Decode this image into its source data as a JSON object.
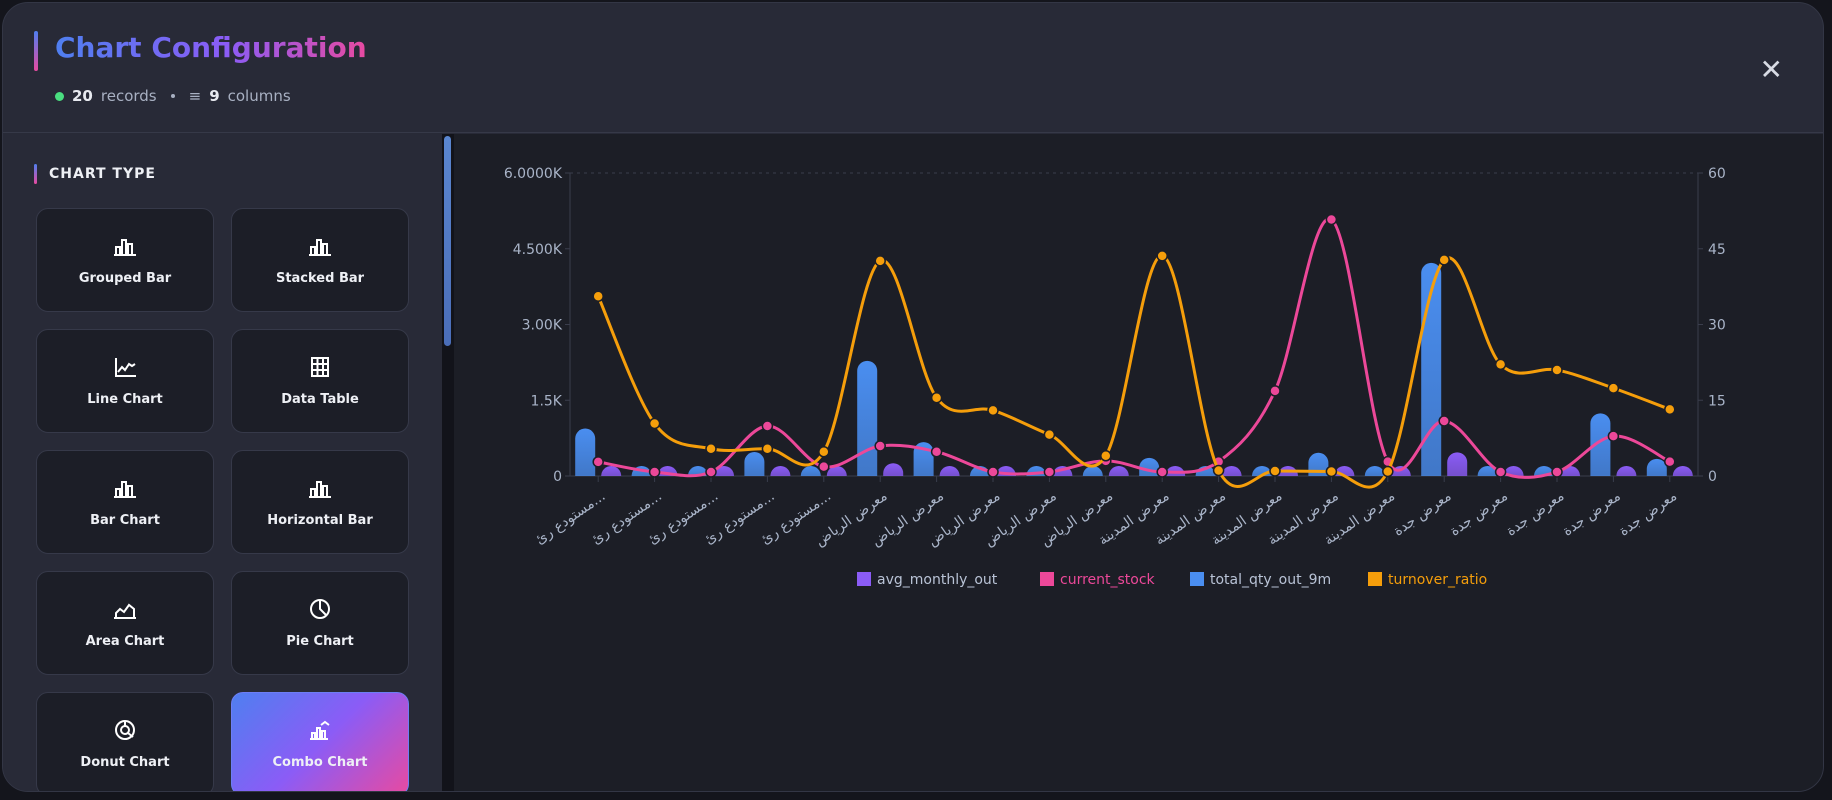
{
  "header": {
    "title": "Chart Configuration",
    "records_count": "20",
    "records_label": "records",
    "columns_count": "9",
    "columns_label": "columns",
    "close_icon": "close-icon"
  },
  "sidebar": {
    "section_title": "CHART TYPE",
    "items": [
      {
        "label": "Grouped Bar",
        "icon": "bar-chart-icon"
      },
      {
        "label": "Stacked Bar",
        "icon": "bar-chart-icon"
      },
      {
        "label": "Line Chart",
        "icon": "line-chart-icon"
      },
      {
        "label": "Data Table",
        "icon": "table-icon"
      },
      {
        "label": "Bar Chart",
        "icon": "bar-chart-icon"
      },
      {
        "label": "Horizontal Bar",
        "icon": "bar-chart-icon"
      },
      {
        "label": "Area Chart",
        "icon": "area-chart-icon"
      },
      {
        "label": "Pie Chart",
        "icon": "pie-chart-icon"
      },
      {
        "label": "Donut Chart",
        "icon": "donut-chart-icon"
      },
      {
        "label": "Combo Chart",
        "icon": "combo-chart-icon",
        "active": true
      }
    ]
  },
  "chart_data": {
    "type": "combo",
    "categories": [
      "مستودع رئ...",
      "مستودع رئ...",
      "مستودع رئ...",
      "مستودع رئ...",
      "مستودع رئ...",
      "معرض الرياض",
      "معرض الرياض",
      "معرض الرياض",
      "معرض الرياض",
      "معرض الرياض",
      "معرض المدينة",
      "معرض المدينة",
      "معرض المدينة",
      "معرض المدينة",
      "معرض المدينة",
      "معرض جدة",
      "معرض جدة",
      "معرض جدة",
      "معرض جدة",
      "معرض جدة"
    ],
    "y_left": {
      "range": [
        0,
        6000
      ],
      "ticks": [
        0,
        1500,
        3000,
        4500,
        6000
      ],
      "tick_labels": [
        "0",
        "1.5K",
        "3.00K",
        "4.500K",
        "6.0000K"
      ]
    },
    "y_right": {
      "range": [
        0,
        60
      ],
      "ticks": [
        0,
        15,
        30,
        45,
        60
      ],
      "tick_labels": [
        "0",
        "15",
        "30",
        "45",
        "60"
      ]
    },
    "grid": "top dashed line only",
    "legend_position": "bottom",
    "series": [
      {
        "name": "avg_monthly_out",
        "type": "bar",
        "axis": "left",
        "color": "#8b5cf6",
        "values": [
          104,
          8,
          3,
          53,
          7,
          253,
          74,
          11,
          11,
          10,
          40,
          2,
          17,
          51,
          2,
          469,
          21,
          20,
          138,
          38
        ]
      },
      {
        "name": "current_stock",
        "type": "line",
        "axis": "left",
        "color": "#ec4899",
        "values": [
          280,
          80,
          80,
          990,
          185,
          595,
          480,
          80,
          80,
          300,
          80,
          285,
          1685,
          5080,
          285,
          1090,
          80,
          80,
          790,
          285
        ]
      },
      {
        "name": "total_qty_out_9m",
        "type": "bar",
        "axis": "left",
        "color": "#4a8ef0",
        "values": [
          940,
          70,
          30,
          475,
          65,
          2280,
          670,
          100,
          100,
          90,
          360,
          20,
          150,
          460,
          15,
          4220,
          185,
          180,
          1240,
          340
        ]
      },
      {
        "name": "turnover_ratio",
        "type": "line",
        "axis": "right",
        "color": "#f59e0b",
        "values": [
          35.6,
          10.4,
          5.4,
          5.4,
          4.8,
          42.6,
          15.5,
          13.0,
          8.2,
          4.0,
          43.6,
          1.1,
          1.0,
          0.9,
          0.9,
          42.8,
          22.1,
          21.0,
          17.4,
          13.2
        ]
      }
    ]
  }
}
